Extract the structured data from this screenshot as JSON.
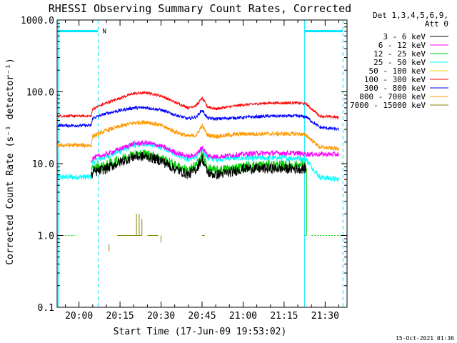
{
  "chart_data": {
    "type": "line",
    "title": "RHESSI Observing Summary Count Rates, Corrected",
    "xlabel": "Start Time (17-Jun-09 19:53:02)",
    "ylabel": "Corrected Count Rate (s⁻¹ detector⁻¹)",
    "yscale": "log",
    "ylim": [
      0.1,
      1000
    ],
    "xlim_minutes": [
      -8,
      98
    ],
    "x_tick_labels": [
      "20:00",
      "20:15",
      "20:30",
      "20:45",
      "21:00",
      "21:15",
      "21:30"
    ],
    "x_tick_minutes": [
      0,
      15,
      30,
      45,
      60,
      75,
      90
    ],
    "y_tick_labels": [
      "0.1",
      "1.0",
      "10.0",
      "100.0",
      "1000.0"
    ],
    "y_tick_values": [
      0.1,
      1,
      10,
      100,
      1000
    ],
    "legend_header": [
      "Det 1,3,4,5,6,9,",
      "Att 0"
    ],
    "legend_position": "right",
    "timestamp": "15-Oct-2021 01:36",
    "flag_label": "N",
    "events": [
      {
        "type": "vertical-line",
        "x_minute": -7.5,
        "style": "solid"
      },
      {
        "type": "vertical-line",
        "x_minute": 7.0,
        "style": "dashed"
      },
      {
        "type": "vertical-line",
        "x_minute": 82.5,
        "style": "solid"
      },
      {
        "type": "vertical-line",
        "x_minute": 96.5,
        "style": "dashed"
      }
    ],
    "flag_segments": [
      {
        "from": -7.5,
        "to": 7.0,
        "value": 700
      },
      {
        "from": 82.5,
        "to": 96.5,
        "value": 700
      }
    ],
    "series": [
      {
        "name": "3 - 6 keV",
        "color": "#000000",
        "x": [
          4.5,
          5,
          10,
          15,
          20,
          25,
          30,
          35,
          40,
          43,
          45,
          47,
          50,
          55,
          60,
          65,
          70,
          75,
          80,
          83
        ],
        "y": [
          6.5,
          7.5,
          8.5,
          10.5,
          12.5,
          12.5,
          11,
          8.5,
          7.0,
          8.5,
          12,
          7.5,
          7.0,
          7.5,
          8.5,
          8.5,
          8.5,
          8.5,
          8.5,
          8.5
        ]
      },
      {
        "name": "6 - 12 keV",
        "color": "#ff00ff",
        "x": [
          4.5,
          5,
          10,
          15,
          20,
          25,
          30,
          35,
          40,
          43,
          45,
          47,
          50,
          55,
          60,
          65,
          70,
          75,
          80,
          83,
          88,
          95
        ],
        "y": [
          11,
          12,
          13.5,
          16,
          19,
          19.5,
          17.5,
          14.5,
          12.5,
          13.5,
          17,
          13,
          12.5,
          13,
          13.5,
          14,
          14,
          14,
          14,
          13.5,
          13.5,
          13.5
        ]
      },
      {
        "name": "12 - 25 keV",
        "color": "#00cc00",
        "x": [
          4.5,
          5,
          10,
          15,
          20,
          25,
          30,
          35,
          40,
          43,
          45,
          47,
          50,
          55,
          60,
          65,
          70,
          75,
          80,
          83
        ],
        "y": [
          7.5,
          8.5,
          9.5,
          11.5,
          13.5,
          13.5,
          12,
          9.5,
          8.0,
          9.5,
          14,
          8.5,
          8.0,
          8.5,
          9.0,
          9.5,
          9.5,
          9.5,
          9.5,
          9.5
        ]
      },
      {
        "name": "25 - 50 keV",
        "color": "#00ffff",
        "x": [
          -8,
          4.5,
          5,
          10,
          15,
          20,
          25,
          30,
          35,
          40,
          43,
          45,
          47,
          50,
          55,
          60,
          65,
          70,
          75,
          80,
          83,
          88,
          95
        ],
        "y": [
          6.5,
          6.5,
          10.5,
          12.5,
          15,
          18,
          19,
          17,
          14,
          11.5,
          12.5,
          16,
          12,
          11.5,
          12,
          12,
          12,
          12,
          12,
          12,
          11.5,
          6.5,
          6.0
        ]
      },
      {
        "name": "50 - 100 keV",
        "color": "#ffcc00",
        "x": [],
        "y": []
      },
      {
        "name": "100 - 300 keV",
        "color": "#ff0000",
        "x": [
          -8,
          4.5,
          5,
          10,
          15,
          20,
          25,
          30,
          35,
          40,
          43,
          45,
          47,
          50,
          55,
          60,
          65,
          70,
          75,
          80,
          83,
          88,
          95
        ],
        "y": [
          46,
          46,
          58,
          70,
          82,
          95,
          97,
          88,
          72,
          60,
          65,
          82,
          62,
          58,
          62,
          66,
          68,
          70,
          70,
          70,
          68,
          46,
          44
        ]
      },
      {
        "name": "300 - 800 keV",
        "color": "#0000ff",
        "x": [
          -8,
          4.5,
          5,
          10,
          15,
          20,
          25,
          30,
          35,
          40,
          43,
          45,
          47,
          50,
          55,
          60,
          65,
          70,
          75,
          80,
          83,
          88,
          95
        ],
        "y": [
          34,
          34,
          43,
          50,
          55,
          60,
          60,
          56,
          48,
          42,
          45,
          56,
          43,
          42,
          43,
          44,
          45,
          46,
          46,
          46,
          45,
          32,
          30
        ]
      },
      {
        "name": "800 - 7000 keV",
        "color": "#ff9900",
        "x": [
          -8,
          4.5,
          5,
          10,
          15,
          20,
          25,
          30,
          35,
          40,
          43,
          45,
          47,
          50,
          55,
          60,
          65,
          70,
          75,
          80,
          83,
          88,
          95
        ],
        "y": [
          18,
          18,
          24,
          29,
          33,
          37,
          38,
          34,
          28,
          24,
          25,
          34,
          25,
          24,
          25,
          26,
          26,
          26,
          26,
          26,
          25,
          17,
          16
        ]
      },
      {
        "name": "7000 - 15000 keV",
        "color": "#808000",
        "x": [],
        "y": []
      }
    ],
    "extra_marks": [
      {
        "series": "12 - 25 keV",
        "segments": [
          [
            -6,
            -1.5,
            1.0
          ],
          [
            82.5,
            83.5,
            1.0
          ],
          [
            85,
            96.5,
            1.0
          ]
        ]
      },
      {
        "series": "7000 - 15000 keV",
        "segments": [
          [
            14,
            21,
            1.0
          ],
          [
            21,
            23,
            1.0
          ],
          [
            25,
            29,
            1.0
          ],
          [
            45,
            46,
            1.0
          ]
        ],
        "spikes": [
          [
            11,
            0.6,
            0.75
          ],
          [
            21,
            1.0,
            2.0
          ],
          [
            22,
            1.0,
            2.0
          ],
          [
            23,
            1.0,
            1.7
          ],
          [
            30,
            0.8,
            1.0
          ]
        ]
      }
    ]
  }
}
